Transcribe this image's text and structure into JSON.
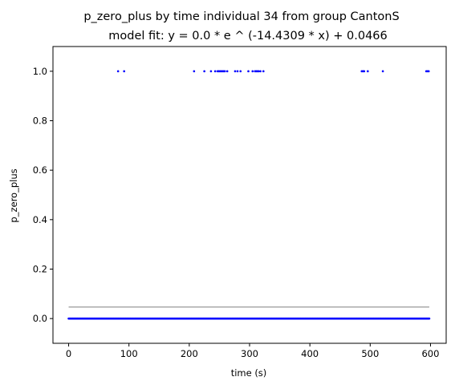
{
  "chart_data": {
    "type": "scatter",
    "title": "p_zero_plus by time individual 34 from group CantonS",
    "subtitle": "model fit: y = 0.0 * e ^ (-14.4309 * x) + 0.0466",
    "xlabel": "time (s)",
    "ylabel": "p_zero_plus",
    "xlim": [
      -26,
      626
    ],
    "ylim": [
      -0.1,
      1.1
    ],
    "xticks": [
      0,
      100,
      200,
      300,
      400,
      500,
      600
    ],
    "yticks": [
      0.0,
      0.2,
      0.4,
      0.6,
      0.8,
      1.0
    ],
    "xtick_labels": [
      "0",
      "100",
      "200",
      "300",
      "400",
      "500",
      "600"
    ],
    "ytick_labels": [
      "0.0",
      "0.2",
      "0.4",
      "0.6",
      "0.8",
      "1.0"
    ],
    "grid": false,
    "series": [
      {
        "marker_color": "#0000ff",
        "zero_points_x_range": [
          0,
          598
        ],
        "zero_points_step": 1,
        "ones_x": [
          82,
          92,
          208,
          225,
          236,
          243,
          247,
          249,
          251,
          253,
          255,
          257,
          259,
          263,
          276,
          280,
          285,
          298,
          305,
          309,
          311,
          313,
          315,
          318,
          323,
          486,
          488,
          490,
          496,
          521,
          593,
          595,
          597
        ]
      }
    ],
    "fit_line": {
      "a": 0.0,
      "b": -14.4309,
      "c": 0.0466,
      "x_range": [
        0,
        598
      ],
      "color": "#aaaaaa"
    }
  }
}
